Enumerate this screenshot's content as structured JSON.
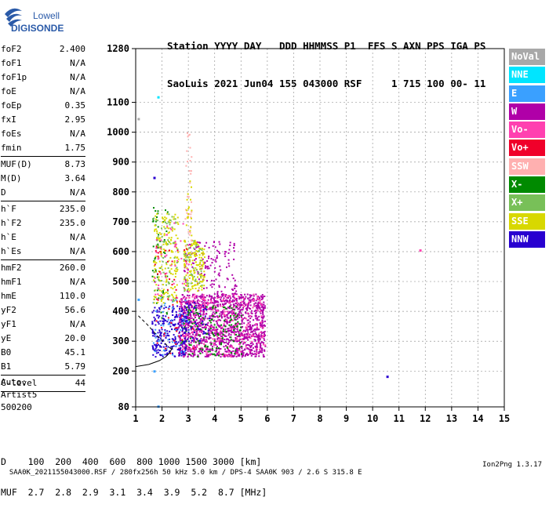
{
  "logo": {
    "line1": "Lowell",
    "line2": "DIGISONDE"
  },
  "header": {
    "labels": "Station YYYY DAY   DDD HHMMSS P1  FFS S AXN PPS IGA PS",
    "values": "SaoLuis 2021 Jun04 155 043000 RSF     1 715 100 00- 11"
  },
  "params": [
    {
      "name": "foF2",
      "value": "2.400"
    },
    {
      "name": "foF1",
      "value": "N/A"
    },
    {
      "name": "foF1p",
      "value": "N/A"
    },
    {
      "name": "foE",
      "value": "N/A"
    },
    {
      "name": "foEp",
      "value": "0.35"
    },
    {
      "name": "fxI",
      "value": "2.95"
    },
    {
      "name": "foEs",
      "value": "N/A"
    },
    {
      "name": "fmin",
      "value": "1.75"
    },
    {
      "sep": true
    },
    {
      "name": "MUF(D)",
      "value": "8.73"
    },
    {
      "name": "M(D)",
      "value": "3.64"
    },
    {
      "name": "D",
      "value": "N/A"
    },
    {
      "sep": true
    },
    {
      "name": "h`F",
      "value": "235.0"
    },
    {
      "name": "h`F2",
      "value": "235.0"
    },
    {
      "name": "h`E",
      "value": "N/A"
    },
    {
      "name": "h`Es",
      "value": "N/A"
    },
    {
      "sep": true
    },
    {
      "name": "hmF2",
      "value": "260.0"
    },
    {
      "name": "hmF1",
      "value": "N/A"
    },
    {
      "name": "hmE",
      "value": "110.0"
    },
    {
      "name": "yF2",
      "value": "56.6"
    },
    {
      "name": "yF1",
      "value": "N/A"
    },
    {
      "name": "yE",
      "value": "20.0"
    },
    {
      "name": "B0",
      "value": "45.1"
    },
    {
      "name": "B1",
      "value": "5.79"
    },
    {
      "sep": true
    },
    {
      "name": "C-level",
      "value": "44"
    },
    {
      "sep": true
    }
  ],
  "auto": {
    "line1": "Auto:",
    "line2": "Artist5",
    "line3": "500200"
  },
  "legend": [
    {
      "label": "NoVal",
      "color": "#a8a8a8"
    },
    {
      "label": "NNE",
      "color": "#00e5ff"
    },
    {
      "label": "E",
      "color": "#3aa0ff"
    },
    {
      "label": "W",
      "color": "#b000a8"
    },
    {
      "label": "Vo-",
      "color": "#ff40b0"
    },
    {
      "label": "Vo+",
      "color": "#f0002a"
    },
    {
      "label": "SSW",
      "color": "#ffb0b0"
    },
    {
      "label": "X-",
      "color": "#008a00"
    },
    {
      "label": "X+",
      "color": "#78c058"
    },
    {
      "label": "SSE",
      "color": "#d8d800"
    },
    {
      "label": "NNW",
      "color": "#2800d0"
    }
  ],
  "muf_table": {
    "row1": "D    100  200  400  600  800 1000 1500 3000 [km]",
    "row2": "MUF  2.7  2.8  2.9  3.1  3.4  3.9  5.2  8.7 [MHz]"
  },
  "footer": {
    "left": "SAA0K_2021155043000.RSF / 280fx256h 50 kHz 5.0 km / DPS-4 SAA0K 903 / 2.6 S 315.8 E",
    "right": "Ion2Png 1.3.17"
  },
  "chart_data": {
    "type": "scatter",
    "title": "",
    "xlabel": "",
    "ylabel": "",
    "xlim": [
      1,
      15
    ],
    "ylim": [
      80,
      1280
    ],
    "x_ticks": [
      1,
      2,
      3,
      4,
      5,
      6,
      7,
      8,
      9,
      10,
      11,
      12,
      13,
      14,
      15
    ],
    "y_ticks": [
      80,
      200,
      300,
      400,
      500,
      600,
      700,
      800,
      900,
      1000,
      1100,
      1280
    ],
    "grid": "dashed",
    "legend": "right",
    "clusters": [
      {
        "name": "W",
        "color": "#b000a8",
        "xmin": 2.6,
        "xmax": 5.9,
        "ymin": 250,
        "ymax": 460,
        "n": 1300
      },
      {
        "name": "W",
        "color": "#b000a8",
        "xmin": 2.8,
        "xmax": 4.8,
        "ymin": 460,
        "ymax": 640,
        "n": 140
      },
      {
        "name": "Vo-",
        "color": "#ff40b0",
        "xmin": 2.6,
        "xmax": 5.9,
        "ymin": 250,
        "ymax": 460,
        "n": 260
      },
      {
        "name": "X-",
        "color": "#008a00",
        "xmin": 2.7,
        "xmax": 5.0,
        "ymin": 250,
        "ymax": 420,
        "n": 150
      },
      {
        "name": "X-",
        "color": "#008a00",
        "xmin": 1.6,
        "xmax": 2.2,
        "ymin": 380,
        "ymax": 760,
        "n": 60
      },
      {
        "name": "NNW",
        "color": "#2800d0",
        "xmin": 1.6,
        "xmax": 2.9,
        "ymin": 250,
        "ymax": 420,
        "n": 240
      },
      {
        "name": "NNW",
        "color": "#2800d0",
        "xmin": 2.8,
        "xmax": 3.8,
        "ymin": 300,
        "ymax": 440,
        "n": 50
      },
      {
        "name": "E",
        "color": "#3aa0ff",
        "xmin": 1.6,
        "xmax": 3.0,
        "ymin": 250,
        "ymax": 450,
        "n": 50
      },
      {
        "name": "SSE",
        "color": "#d8d800",
        "xmin": 1.65,
        "xmax": 2.6,
        "ymin": 430,
        "ymax": 730,
        "n": 170
      },
      {
        "name": "SSE",
        "color": "#d8d800",
        "xmin": 2.8,
        "xmax": 3.6,
        "ymin": 470,
        "ymax": 640,
        "n": 150
      },
      {
        "name": "X+",
        "color": "#78c058",
        "xmin": 1.65,
        "xmax": 2.6,
        "ymin": 430,
        "ymax": 730,
        "n": 60
      },
      {
        "name": "X+",
        "color": "#78c058",
        "xmin": 2.8,
        "xmax": 3.5,
        "ymin": 470,
        "ymax": 640,
        "n": 40
      },
      {
        "name": "SSW",
        "color": "#ffb0b0",
        "xmin": 2.85,
        "xmax": 3.1,
        "ymin": 620,
        "ymax": 1000,
        "n": 35
      },
      {
        "name": "SSE",
        "color": "#d8d800",
        "xmin": 2.9,
        "xmax": 3.1,
        "ymin": 640,
        "ymax": 860,
        "n": 18
      },
      {
        "name": "Vo+",
        "color": "#f0002a",
        "xmin": 1.7,
        "xmax": 3.2,
        "ymin": 260,
        "ymax": 620,
        "n": 50
      },
      {
        "name": "Vo-",
        "color": "#ff40b0",
        "xmin": 1.7,
        "xmax": 3.0,
        "ymin": 430,
        "ymax": 700,
        "n": 50
      }
    ],
    "points": [
      {
        "x": 1.85,
        "y": 1118,
        "color": "#00e5ff"
      },
      {
        "x": 1.1,
        "y": 1045,
        "color": "#a8a8a8"
      },
      {
        "x": 1.7,
        "y": 848,
        "color": "#2800d0"
      },
      {
        "x": 10.55,
        "y": 182,
        "color": "#2800d0"
      },
      {
        "x": 11.8,
        "y": 605,
        "color": "#ff40b0"
      },
      {
        "x": 1.1,
        "y": 440,
        "color": "#3aa0ff"
      },
      {
        "x": 1.7,
        "y": 200,
        "color": "#3aa0ff"
      },
      {
        "x": 1.85,
        "y": 82,
        "color": "#3aa0ff"
      }
    ],
    "profile": [
      {
        "x": 1.0,
        "y": 215
      },
      {
        "x": 1.5,
        "y": 222
      },
      {
        "x": 1.9,
        "y": 235
      },
      {
        "x": 2.15,
        "y": 248
      },
      {
        "x": 2.3,
        "y": 262
      },
      {
        "x": 2.4,
        "y": 280
      }
    ],
    "profile_dashed": [
      {
        "x": 1.1,
        "y": 385
      },
      {
        "x": 1.45,
        "y": 355
      },
      {
        "x": 1.8,
        "y": 320
      },
      {
        "x": 2.2,
        "y": 285
      },
      {
        "x": 2.4,
        "y": 270
      }
    ]
  }
}
